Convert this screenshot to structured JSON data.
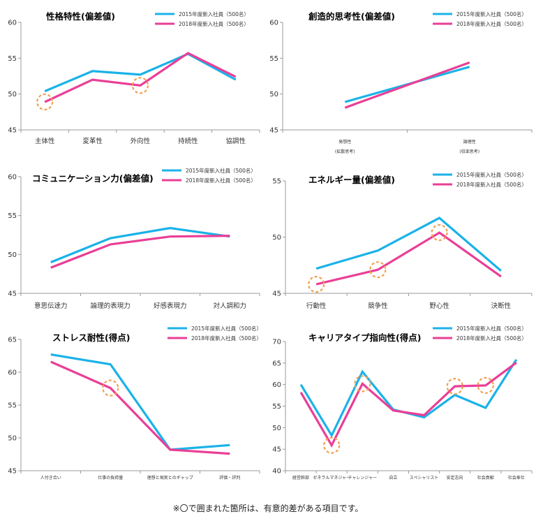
{
  "colors": {
    "series_2015": "#1ab2e8",
    "series_2018": "#ea3e96",
    "circle": "#f0a050",
    "axis": "#9a9a9a"
  },
  "legend": {
    "s2015": "2015年度新入社員（500名）",
    "s2018": "2018年度新入社員（500名）"
  },
  "footnote": "※〇で囲まれた箇所は、有意的差がある項目です。",
  "chart_data": [
    {
      "type": "line",
      "title": "性格特性(偏差値)",
      "categories": [
        "主体性",
        "変革性",
        "外向性",
        "持続性",
        "協調性"
      ],
      "ylim": [
        45,
        60
      ],
      "yticks": [
        45,
        50,
        55,
        60
      ],
      "series": [
        {
          "name": "2015年度新入社員（500名）",
          "values": [
            50.4,
            53.2,
            52.7,
            55.6,
            52.0
          ]
        },
        {
          "name": "2018年度新入社員（500名）",
          "values": [
            48.9,
            52.0,
            51.2,
            55.7,
            52.4
          ]
        }
      ],
      "significant": [
        0,
        2
      ]
    },
    {
      "type": "line",
      "title": "創造的思考性(偏差値)",
      "categories": [
        "発想性",
        "論理性"
      ],
      "category_sub": [
        "(拡散思考)",
        "(収束思考)"
      ],
      "ylim": [
        45,
        60
      ],
      "yticks": [
        45,
        50,
        55,
        60
      ],
      "series": [
        {
          "name": "2015年度新入社員（500名）",
          "values": [
            48.9,
            53.8
          ]
        },
        {
          "name": "2018年度新入社員（500名）",
          "values": [
            48.1,
            54.4
          ]
        }
      ],
      "significant": []
    },
    {
      "type": "line",
      "title": "コミュニケーション力(偏差値)",
      "categories": [
        "意思伝達力",
        "論理的表現力",
        "好感表現力",
        "対人調和力"
      ],
      "ylim": [
        45,
        60
      ],
      "yticks": [
        45,
        50,
        55,
        60
      ],
      "series": [
        {
          "name": "2015年度新入社員（500名）",
          "values": [
            49.0,
            52.1,
            53.4,
            52.3
          ]
        },
        {
          "name": "2018年度新入社員（500名）",
          "values": [
            48.3,
            51.3,
            52.3,
            52.4
          ]
        }
      ],
      "significant": []
    },
    {
      "type": "line",
      "title": "エネルギー量(偏差値)",
      "categories": [
        "行動性",
        "競争性",
        "野心性",
        "決断性"
      ],
      "ylim": [
        45,
        55
      ],
      "yticks": [
        45,
        50,
        55
      ],
      "series": [
        {
          "name": "2015年度新入社員（500名）",
          "values": [
            47.2,
            48.8,
            51.7,
            47.0
          ]
        },
        {
          "name": "2018年度新入社員（500名）",
          "values": [
            45.8,
            47.1,
            50.4,
            46.5
          ]
        }
      ],
      "significant": [
        0,
        1,
        2
      ]
    },
    {
      "type": "line",
      "title": "ストレス耐性(得点)",
      "categories": [
        "人付き合い",
        "仕事の負荷量",
        "理想と現実とのギャップ",
        "評価・評判"
      ],
      "ylim": [
        45,
        65
      ],
      "yticks": [
        45,
        50,
        55,
        60,
        65
      ],
      "series": [
        {
          "name": "2015年度新入社員（500名）",
          "values": [
            62.7,
            61.2,
            48.2,
            48.9
          ]
        },
        {
          "name": "2018年度新入社員（500名）",
          "values": [
            61.6,
            57.6,
            48.2,
            47.6
          ]
        }
      ],
      "significant": [
        1
      ]
    },
    {
      "type": "line",
      "title": "キャリアタイプ指向性(得点)",
      "categories": [
        "経営幹部",
        "ゼネラルマネジャー",
        "チャレンジャー",
        "自立",
        "スペシャリスト",
        "安定志向",
        "社会貢献",
        "社会奉仕"
      ],
      "ylim": [
        40,
        70
      ],
      "yticks": [
        40,
        45,
        50,
        55,
        60,
        65,
        70
      ],
      "series": [
        {
          "name": "2015年度新入社員（500名）",
          "values": [
            60.0,
            48.2,
            63.0,
            54.2,
            52.4,
            57.6,
            54.6,
            65.8
          ]
        },
        {
          "name": "2018年度新入社員（500名）",
          "values": [
            58.2,
            45.9,
            60.2,
            54.0,
            52.9,
            59.6,
            59.8,
            65.1
          ]
        }
      ],
      "significant": [
        1,
        2,
        5,
        6
      ]
    }
  ]
}
